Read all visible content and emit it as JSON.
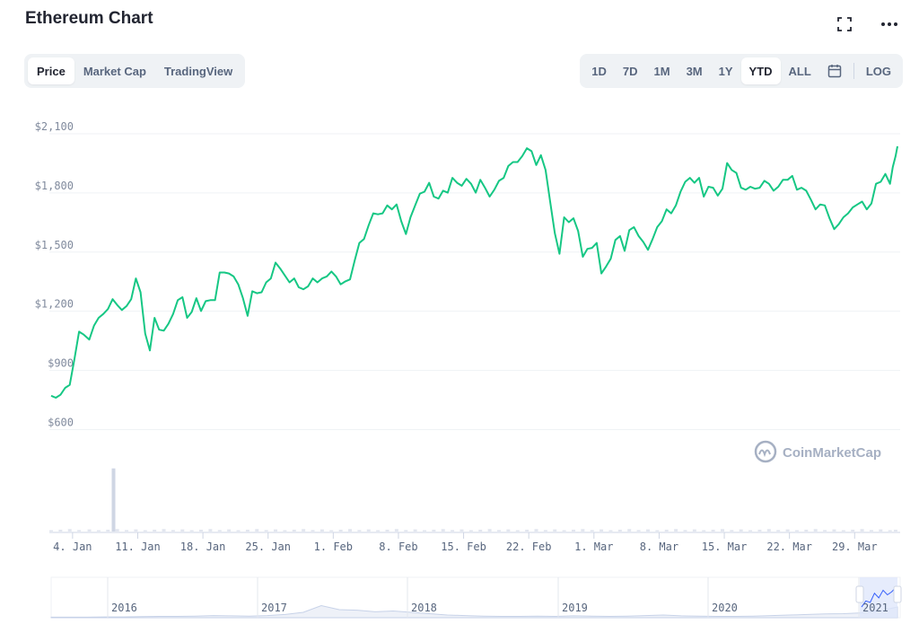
{
  "header": {
    "title": "Ethereum Chart",
    "fullscreen_icon": "expand-icon",
    "more_icon": "more-horizontal-icon"
  },
  "view_tabs": [
    "Price",
    "Market Cap",
    "TradingView"
  ],
  "view_active": "Price",
  "range_tabs": [
    "1D",
    "7D",
    "1M",
    "3M",
    "1Y",
    "YTD",
    "ALL"
  ],
  "range_active": "YTD",
  "calendar_icon": "calendar-icon",
  "log_label": "LOG",
  "watermark": "CoinMarketCap",
  "colors": {
    "line": "#16c784",
    "grid": "#eff2f5",
    "volume": "#cfd6e4",
    "navigator_selection": "#dde6fb"
  },
  "chart_data": {
    "type": "line",
    "title": "Ethereum Chart",
    "y_ticks": [
      "$2,100",
      "$1,800",
      "$1,500",
      "$1,200",
      "$900",
      "$600"
    ],
    "y_tick_values": [
      2100,
      1800,
      1500,
      1200,
      900,
      600
    ],
    "ylim": [
      420,
      2150
    ],
    "x_ticks": [
      "4. Jan",
      "11. Jan",
      "18. Jan",
      "25. Jan",
      "1. Feb",
      "8. Feb",
      "15. Feb",
      "22. Feb",
      "1. Mar",
      "8. Mar",
      "15. Mar",
      "22. Mar",
      "29. Mar"
    ],
    "x_tick_days": [
      3,
      10,
      17,
      24,
      31,
      38,
      45,
      52,
      59,
      66,
      73,
      80,
      87
    ],
    "x_range_days": [
      0.7,
      91.6
    ],
    "series": [
      {
        "values": [
          [
            0.7,
            735
          ],
          [
            1.2,
            725
          ],
          [
            1.7,
            740
          ],
          [
            2.2,
            775
          ],
          [
            2.7,
            790
          ],
          [
            3.2,
            920
          ],
          [
            3.7,
            1060
          ],
          [
            4.2,
            1045
          ],
          [
            4.8,
            1020
          ],
          [
            5.3,
            1090
          ],
          [
            5.8,
            1130
          ],
          [
            6.3,
            1150
          ],
          [
            6.8,
            1175
          ],
          [
            7.3,
            1225
          ],
          [
            7.8,
            1195
          ],
          [
            8.3,
            1170
          ],
          [
            8.8,
            1190
          ],
          [
            9.3,
            1225
          ],
          [
            9.8,
            1330
          ],
          [
            10.3,
            1260
          ],
          [
            10.8,
            1050
          ],
          [
            11.3,
            965
          ],
          [
            11.8,
            1130
          ],
          [
            12.3,
            1070
          ],
          [
            12.8,
            1065
          ],
          [
            13.3,
            1100
          ],
          [
            13.8,
            1150
          ],
          [
            14.3,
            1220
          ],
          [
            14.8,
            1235
          ],
          [
            15.3,
            1130
          ],
          [
            15.8,
            1160
          ],
          [
            16.3,
            1230
          ],
          [
            16.8,
            1165
          ],
          [
            17.3,
            1215
          ],
          [
            17.8,
            1220
          ],
          [
            18.3,
            1220
          ],
          [
            18.8,
            1360
          ],
          [
            19.3,
            1360
          ],
          [
            19.8,
            1355
          ],
          [
            20.3,
            1340
          ],
          [
            20.8,
            1300
          ],
          [
            21.3,
            1230
          ],
          [
            21.8,
            1140
          ],
          [
            22.3,
            1265
          ],
          [
            22.8,
            1255
          ],
          [
            23.3,
            1260
          ],
          [
            23.8,
            1310
          ],
          [
            24.3,
            1330
          ],
          [
            24.8,
            1410
          ],
          [
            25.3,
            1380
          ],
          [
            25.8,
            1345
          ],
          [
            26.3,
            1310
          ],
          [
            26.8,
            1330
          ],
          [
            27.3,
            1285
          ],
          [
            27.8,
            1275
          ],
          [
            28.3,
            1290
          ],
          [
            28.8,
            1330
          ],
          [
            29.3,
            1310
          ],
          [
            29.8,
            1330
          ],
          [
            30.3,
            1340
          ],
          [
            30.8,
            1365
          ],
          [
            31.3,
            1340
          ],
          [
            31.8,
            1300
          ],
          [
            32.3,
            1315
          ],
          [
            32.8,
            1325
          ],
          [
            33.3,
            1420
          ],
          [
            33.8,
            1510
          ],
          [
            34.3,
            1530
          ],
          [
            34.8,
            1600
          ],
          [
            35.3,
            1660
          ],
          [
            35.8,
            1655
          ],
          [
            36.3,
            1660
          ],
          [
            36.8,
            1700
          ],
          [
            37.3,
            1680
          ],
          [
            37.8,
            1705
          ],
          [
            38.3,
            1620
          ],
          [
            38.8,
            1555
          ],
          [
            39.3,
            1640
          ],
          [
            39.8,
            1700
          ],
          [
            40.3,
            1760
          ],
          [
            40.8,
            1770
          ],
          [
            41.3,
            1815
          ],
          [
            41.8,
            1745
          ],
          [
            42.3,
            1735
          ],
          [
            42.8,
            1775
          ],
          [
            43.3,
            1765
          ],
          [
            43.8,
            1840
          ],
          [
            44.3,
            1815
          ],
          [
            44.8,
            1800
          ],
          [
            45.3,
            1835
          ],
          [
            45.8,
            1810
          ],
          [
            46.3,
            1765
          ],
          [
            46.8,
            1830
          ],
          [
            47.3,
            1790
          ],
          [
            47.8,
            1745
          ],
          [
            48.3,
            1780
          ],
          [
            48.8,
            1825
          ],
          [
            49.3,
            1840
          ],
          [
            49.8,
            1900
          ],
          [
            50.3,
            1920
          ],
          [
            50.8,
            1920
          ],
          [
            51.3,
            1950
          ],
          [
            51.8,
            1990
          ],
          [
            52.3,
            1975
          ],
          [
            52.8,
            1905
          ],
          [
            53.3,
            1955
          ],
          [
            53.8,
            1880
          ],
          [
            54.3,
            1720
          ],
          [
            54.8,
            1560
          ],
          [
            55.3,
            1455
          ],
          [
            55.8,
            1640
          ],
          [
            56.3,
            1615
          ],
          [
            56.8,
            1635
          ],
          [
            57.3,
            1570
          ],
          [
            57.8,
            1440
          ],
          [
            58.3,
            1480
          ],
          [
            58.8,
            1485
          ],
          [
            59.3,
            1510
          ],
          [
            59.8,
            1355
          ],
          [
            60.3,
            1390
          ],
          [
            60.8,
            1430
          ],
          [
            61.3,
            1525
          ],
          [
            61.8,
            1545
          ],
          [
            62.3,
            1470
          ],
          [
            62.8,
            1575
          ],
          [
            63.3,
            1590
          ],
          [
            63.8,
            1545
          ],
          [
            64.3,
            1515
          ],
          [
            64.8,
            1475
          ],
          [
            65.3,
            1530
          ],
          [
            65.8,
            1590
          ],
          [
            66.3,
            1620
          ],
          [
            66.8,
            1680
          ],
          [
            67.3,
            1660
          ],
          [
            67.8,
            1700
          ],
          [
            68.3,
            1770
          ],
          [
            68.8,
            1820
          ],
          [
            69.3,
            1840
          ],
          [
            69.8,
            1815
          ],
          [
            70.3,
            1840
          ],
          [
            70.8,
            1745
          ],
          [
            71.3,
            1795
          ],
          [
            71.8,
            1790
          ],
          [
            72.3,
            1750
          ],
          [
            72.8,
            1785
          ],
          [
            73.3,
            1915
          ],
          [
            73.8,
            1880
          ],
          [
            74.3,
            1865
          ],
          [
            74.8,
            1790
          ],
          [
            75.3,
            1780
          ],
          [
            75.8,
            1795
          ],
          [
            76.3,
            1785
          ],
          [
            76.8,
            1790
          ],
          [
            77.3,
            1825
          ],
          [
            77.8,
            1810
          ],
          [
            78.3,
            1775
          ],
          [
            78.8,
            1795
          ],
          [
            79.3,
            1830
          ],
          [
            79.8,
            1830
          ],
          [
            80.3,
            1850
          ],
          [
            80.8,
            1780
          ],
          [
            81.3,
            1790
          ],
          [
            81.8,
            1775
          ],
          [
            82.3,
            1730
          ],
          [
            82.8,
            1680
          ],
          [
            83.3,
            1705
          ],
          [
            83.8,
            1700
          ],
          [
            84.3,
            1635
          ],
          [
            84.8,
            1580
          ],
          [
            85.3,
            1605
          ],
          [
            85.8,
            1640
          ],
          [
            86.3,
            1660
          ],
          [
            86.8,
            1690
          ],
          [
            87.3,
            1705
          ],
          [
            87.8,
            1720
          ],
          [
            88.3,
            1680
          ],
          [
            88.8,
            1710
          ],
          [
            89.3,
            1810
          ],
          [
            89.8,
            1820
          ],
          [
            90.3,
            1860
          ],
          [
            90.8,
            1810
          ],
          [
            91.1,
            1895
          ],
          [
            91.4,
            1950
          ],
          [
            91.6,
            2000
          ]
        ]
      }
    ],
    "volume": {
      "spike_day": 7.4,
      "spike_height_frac": 0.95,
      "baseline_frac": 0.03
    },
    "navigator": {
      "labels": [
        "2016",
        "2017",
        "2018",
        "2019",
        "2020",
        "2021"
      ],
      "selected_label": "2021"
    },
    "grid": true,
    "legend": "none"
  }
}
